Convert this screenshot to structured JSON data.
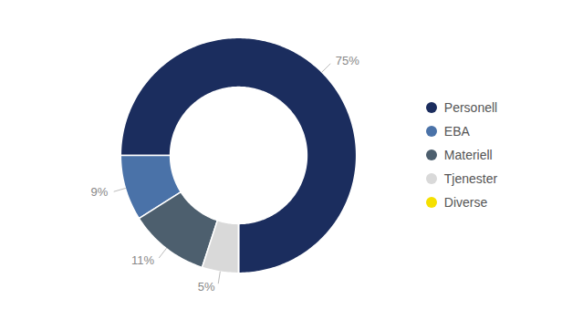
{
  "chart_data": {
    "type": "pie",
    "categories": [
      "Personell",
      "EBA",
      "Materiell",
      "Tjenester",
      "Diverse"
    ],
    "values": [
      75,
      9,
      11,
      5,
      0.001
    ],
    "colors": [
      "#1b2d5e",
      "#4a72a8",
      "#4d5f6e",
      "#d9d9d9",
      "#f5e000"
    ],
    "value_labels": [
      "75%",
      "9%",
      "11%",
      "5%",
      null
    ],
    "data_labels": true,
    "legend": "right"
  }
}
